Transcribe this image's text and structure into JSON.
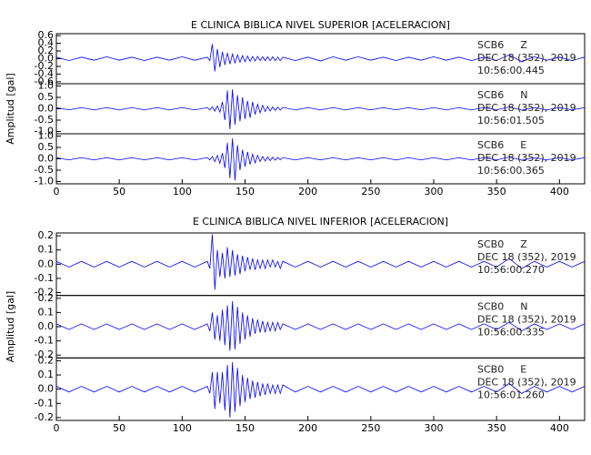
{
  "chart_data": [
    {
      "type": "line",
      "title": "E CLINICA BIBLICA NIVEL SUPERIOR [ACELERACION]",
      "ylabel": "Amplitud [gal]",
      "x": [
        0,
        10,
        20,
        30,
        40,
        50,
        60,
        70,
        80,
        90,
        100,
        110,
        120,
        122,
        124,
        126,
        128,
        130,
        132,
        134,
        136,
        138,
        140,
        142,
        144,
        146,
        148,
        150,
        152,
        154,
        156,
        158,
        160,
        162,
        164,
        166,
        168,
        170,
        172,
        174,
        176,
        178,
        180,
        190,
        200,
        210,
        220,
        230,
        240,
        250,
        260,
        270,
        280,
        290,
        300,
        310,
        320,
        330,
        340,
        350,
        360,
        370,
        380,
        390,
        400,
        410,
        420
      ],
      "xlim": [
        0,
        420
      ],
      "xticks": [
        0,
        50,
        100,
        150,
        200,
        250,
        300,
        350,
        400
      ],
      "series": [
        {
          "station": "SCB6",
          "component": "Z",
          "date": "DEC 18 (352), 2019",
          "time": "10:56:00.445",
          "color": "#0000ff",
          "ylim": [
            -0.65,
            0.65
          ],
          "yticks": [
            -0.6,
            -0.4,
            -0.2,
            {
              "value": 0,
              "label": "0.0"
            },
            0.2,
            0.4,
            0.6
          ],
          "values": [
            0.04,
            -0.05,
            0.04,
            -0.04,
            0.05,
            -0.04,
            0.04,
            -0.05,
            0.04,
            -0.04,
            0.05,
            -0.04,
            0.04,
            -0.05,
            0.38,
            -0.33,
            0.25,
            -0.22,
            0.18,
            -0.16,
            0.15,
            -0.14,
            0.12,
            -0.11,
            0.1,
            -0.09,
            0.08,
            -0.08,
            0.07,
            -0.07,
            0.06,
            -0.06,
            0.06,
            -0.05,
            0.05,
            -0.05,
            0.05,
            -0.05,
            0.05,
            -0.05,
            0.04,
            -0.05,
            0.04,
            -0.05,
            0.04,
            -0.06,
            0.05,
            -0.04,
            0.05,
            -0.04,
            0.04,
            -0.05,
            0.04,
            -0.04,
            0.05,
            -0.04,
            0.04,
            -0.05,
            0.04,
            -0.05,
            0.1,
            -0.08,
            0.05,
            -0.04,
            0.04,
            -0.05,
            0.04
          ]
        },
        {
          "station": "SCB6",
          "component": "N",
          "date": "DEC 18 (352), 2019",
          "time": "10:56:01.505",
          "color": "#0000ff",
          "ylim": [
            -1.1,
            1.1
          ],
          "yticks": [
            {
              "value": -1,
              "label": "-1.0"
            },
            -0.5,
            {
              "value": 0,
              "label": "0.0"
            },
            0.5,
            {
              "value": 1,
              "label": "1.0"
            }
          ],
          "values": [
            0.05,
            -0.05,
            0.05,
            -0.05,
            0.05,
            -0.05,
            0.05,
            -0.05,
            0.05,
            -0.05,
            0.05,
            -0.05,
            0.05,
            -0.05,
            0.08,
            -0.1,
            0.12,
            -0.15,
            0.3,
            -0.5,
            0.8,
            -0.9,
            0.85,
            -0.7,
            0.6,
            -0.55,
            0.5,
            -0.45,
            0.35,
            -0.4,
            0.3,
            -0.25,
            0.2,
            -0.18,
            0.15,
            -0.12,
            0.1,
            -0.1,
            0.08,
            -0.08,
            0.07,
            -0.06,
            0.06,
            -0.05,
            0.05,
            -0.05,
            0.05,
            -0.05,
            0.05,
            -0.05,
            0.05,
            -0.05,
            0.05,
            -0.05,
            0.05,
            -0.05,
            0.05,
            -0.05,
            0.05,
            -0.05,
            0.08,
            -0.06,
            0.05,
            -0.05,
            0.05,
            -0.05,
            0.05
          ]
        },
        {
          "station": "SCB6",
          "component": "E",
          "date": "DEC 18 (352), 2019",
          "time": "10:56:00.365",
          "color": "#0000ff",
          "ylim": [
            -1.1,
            1.1
          ],
          "yticks": [
            {
              "value": -1,
              "label": "-1.0"
            },
            -0.5,
            {
              "value": 0,
              "label": "0.0"
            },
            0.5,
            {
              "value": 1,
              "label": "1.0"
            }
          ],
          "values": [
            0.05,
            -0.05,
            0.05,
            -0.05,
            0.05,
            -0.05,
            0.05,
            -0.05,
            0.05,
            -0.05,
            0.05,
            -0.05,
            0.05,
            -0.05,
            0.1,
            -0.12,
            0.15,
            -0.2,
            0.25,
            -0.4,
            0.7,
            -0.85,
            0.9,
            -0.95,
            0.6,
            -0.5,
            0.4,
            -0.35,
            0.3,
            -0.25,
            0.2,
            -0.18,
            0.15,
            -0.12,
            0.1,
            -0.1,
            0.08,
            -0.08,
            0.07,
            -0.06,
            0.06,
            -0.05,
            0.05,
            -0.05,
            0.05,
            -0.05,
            0.05,
            -0.05,
            0.05,
            -0.05,
            0.05,
            -0.05,
            0.05,
            -0.05,
            0.05,
            -0.05,
            0.05,
            -0.05,
            0.05,
            -0.05,
            0.08,
            -0.06,
            0.05,
            -0.05,
            0.05,
            -0.05,
            0.05
          ]
        }
      ]
    },
    {
      "type": "line",
      "title": "E CLINICA BIBLICA NIVEL INFERIOR [ACELERACION]",
      "ylabel": "Amplitud [gal]",
      "x": [
        0,
        10,
        20,
        30,
        40,
        50,
        60,
        70,
        80,
        90,
        100,
        110,
        120,
        122,
        124,
        126,
        128,
        130,
        132,
        134,
        136,
        138,
        140,
        142,
        144,
        146,
        148,
        150,
        152,
        154,
        156,
        158,
        160,
        162,
        164,
        166,
        168,
        170,
        172,
        174,
        176,
        178,
        180,
        190,
        200,
        210,
        220,
        230,
        240,
        250,
        260,
        270,
        280,
        290,
        300,
        310,
        320,
        330,
        340,
        350,
        360,
        370,
        380,
        390,
        400,
        410,
        420
      ],
      "xlim": [
        0,
        420
      ],
      "xticks": [
        0,
        50,
        100,
        150,
        200,
        250,
        300,
        350,
        400
      ],
      "series": [
        {
          "station": "SCB0",
          "component": "Z",
          "date": "DEC 18 (352), 2019",
          "time": "10:56:00.270",
          "color": "#0000ff",
          "ylim": [
            -0.22,
            0.22
          ],
          "yticks": [
            -0.2,
            -0.1,
            {
              "value": 0,
              "label": "0.0"
            },
            0.1,
            0.2
          ],
          "values": [
            0.02,
            -0.02,
            0.02,
            -0.02,
            0.02,
            -0.02,
            0.02,
            -0.02,
            0.02,
            -0.02,
            0.02,
            -0.02,
            0.02,
            -0.03,
            0.21,
            -0.18,
            0.1,
            -0.09,
            0.08,
            -0.1,
            0.12,
            -0.09,
            0.1,
            -0.08,
            0.07,
            -0.07,
            0.06,
            -0.05,
            0.05,
            -0.04,
            0.04,
            -0.04,
            0.03,
            -0.03,
            0.03,
            -0.03,
            0.03,
            -0.02,
            0.03,
            -0.02,
            0.02,
            -0.03,
            0.02,
            -0.02,
            0.02,
            -0.02,
            0.02,
            -0.02,
            0.02,
            -0.02,
            0.02,
            -0.02,
            0.02,
            -0.02,
            0.02,
            -0.02,
            0.02,
            -0.02,
            0.02,
            -0.02,
            0.04,
            -0.03,
            0.02,
            -0.02,
            0.02,
            -0.02,
            0.02
          ]
        },
        {
          "station": "SCB0",
          "component": "N",
          "date": "DEC 18 (352), 2019",
          "time": "10:56:00.335",
          "color": "#0000ff",
          "ylim": [
            -0.22,
            0.22
          ],
          "yticks": [
            -0.2,
            -0.1,
            {
              "value": 0,
              "label": "0.0"
            },
            0.1,
            0.2
          ],
          "values": [
            0.02,
            -0.02,
            0.02,
            -0.02,
            0.02,
            -0.02,
            0.02,
            -0.02,
            0.02,
            -0.02,
            0.02,
            -0.02,
            0.02,
            -0.03,
            0.1,
            -0.09,
            0.08,
            -0.1,
            0.12,
            -0.13,
            0.15,
            -0.17,
            0.18,
            -0.16,
            0.14,
            -0.12,
            0.1,
            -0.09,
            0.08,
            -0.07,
            0.06,
            -0.05,
            0.05,
            -0.04,
            0.04,
            -0.04,
            0.03,
            -0.03,
            0.03,
            -0.03,
            0.03,
            -0.02,
            0.02,
            -0.02,
            0.02,
            -0.02,
            0.02,
            -0.02,
            0.02,
            -0.02,
            0.02,
            -0.02,
            0.02,
            -0.02,
            0.02,
            -0.02,
            0.02,
            -0.02,
            0.02,
            -0.02,
            0.03,
            -0.03,
            0.02,
            -0.02,
            0.02,
            -0.02,
            0.02
          ]
        },
        {
          "station": "SCB0",
          "component": "E",
          "date": "DEC 18 (352), 2019",
          "time": "10:56:01.260",
          "color": "#0000ff",
          "ylim": [
            -0.22,
            0.22
          ],
          "yticks": [
            -0.2,
            -0.1,
            {
              "value": 0,
              "label": "0.0"
            },
            0.1,
            0.2
          ],
          "values": [
            0.02,
            -0.02,
            0.02,
            -0.02,
            0.02,
            -0.02,
            0.02,
            -0.02,
            0.02,
            -0.02,
            0.02,
            -0.02,
            0.02,
            -0.03,
            0.12,
            -0.14,
            0.12,
            -0.1,
            0.12,
            -0.15,
            0.17,
            -0.2,
            0.19,
            -0.16,
            0.15,
            -0.12,
            0.1,
            -0.09,
            0.08,
            -0.07,
            0.06,
            -0.06,
            0.05,
            -0.05,
            0.04,
            -0.04,
            0.04,
            -0.03,
            0.03,
            -0.03,
            0.03,
            -0.03,
            0.03,
            -0.02,
            0.02,
            -0.02,
            0.02,
            -0.02,
            0.02,
            -0.02,
            0.02,
            -0.02,
            0.02,
            -0.02,
            0.02,
            -0.02,
            0.02,
            -0.02,
            0.02,
            -0.02,
            0.04,
            -0.03,
            0.02,
            -0.02,
            0.02,
            -0.02,
            0.02
          ]
        }
      ]
    }
  ]
}
